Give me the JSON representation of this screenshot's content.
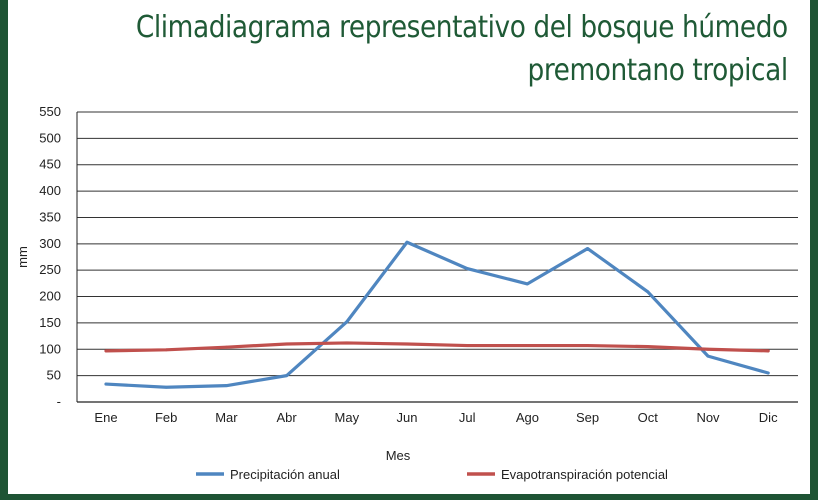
{
  "title_lines": [
    "Climadiagrama representativo del bosque húmedo",
    "premontano tropical"
  ],
  "chart_data": {
    "type": "line",
    "title": "Climadiagrama representativo del bosque húmedo premontano tropical",
    "xlabel": "Mes",
    "ylabel": "mm",
    "categories": [
      "Ene",
      "Feb",
      "Mar",
      "Abr",
      "May",
      "Jun",
      "Jul",
      "Ago",
      "Sep",
      "Oct",
      "Nov",
      "Dic"
    ],
    "ylim": [
      0,
      550
    ],
    "yticks": [
      0,
      50,
      100,
      150,
      200,
      250,
      300,
      350,
      400,
      450,
      500,
      550
    ],
    "ytick_labels": [
      "-",
      "50",
      "100",
      "150",
      "200",
      "250",
      "300",
      "350",
      "400",
      "450",
      "500",
      "550"
    ],
    "grid": "horizontal",
    "legend_position": "bottom",
    "series": [
      {
        "name": "Precipitación anual",
        "color": "#4f86c0",
        "values": [
          34,
          28,
          31,
          50,
          152,
          303,
          253,
          224,
          291,
          209,
          87,
          55
        ]
      },
      {
        "name": "Evapotranspiración potencial",
        "color": "#c0504d",
        "values": [
          97,
          99,
          104,
          110,
          112,
          110,
          107,
          107,
          107,
          105,
          100,
          97
        ]
      }
    ]
  }
}
